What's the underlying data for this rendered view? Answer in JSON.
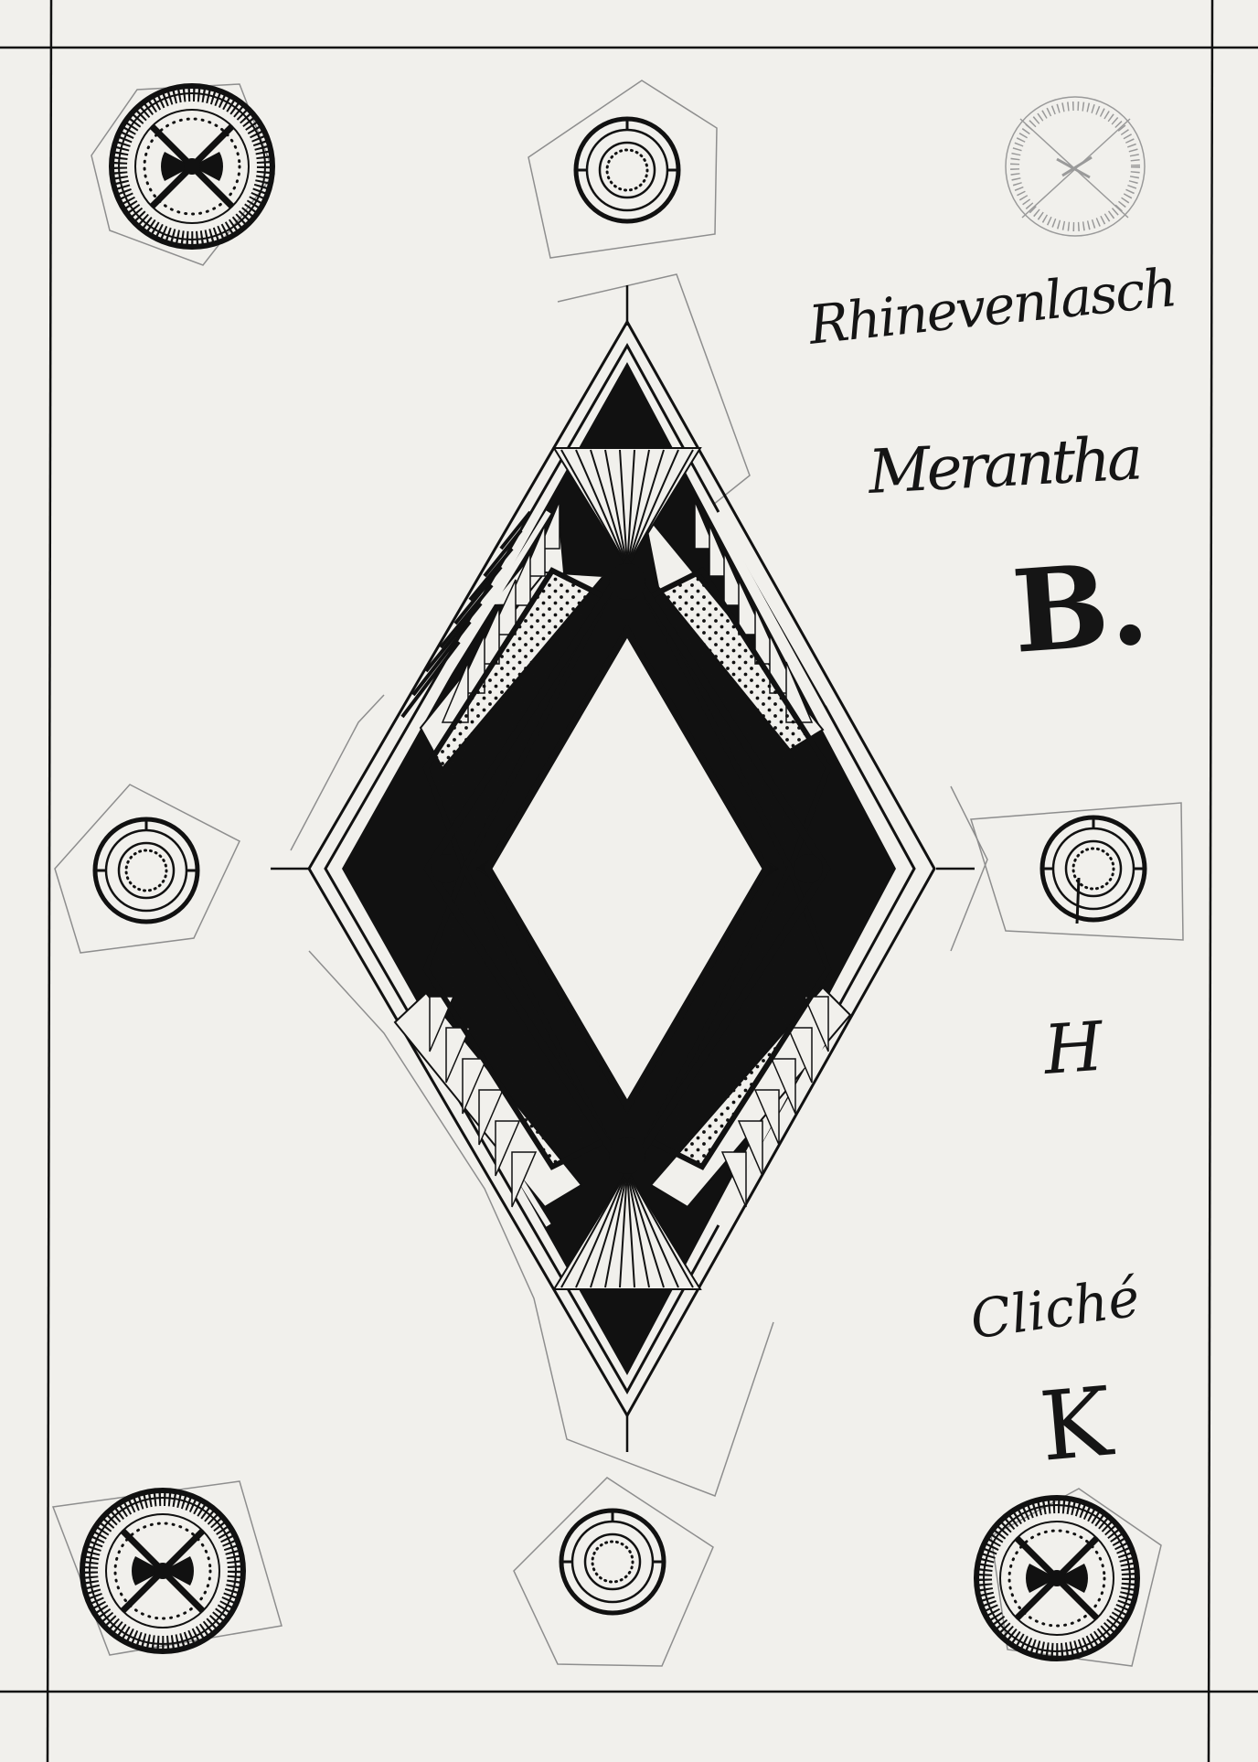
{
  "annotations": {
    "line1": "Rhinevenlasch",
    "line2": "Merantha",
    "letter_b": "B.",
    "letter_h": "H",
    "cliche": "Cliché",
    "letter_k": "K"
  },
  "colors": {
    "paper": "#f1f0ec",
    "ink": "#111111",
    "pencil": "#9a9a9a"
  },
  "icons": {
    "corner_ornament": "quartered-roundel-icon",
    "side_ornament": "concentric-ring-icon",
    "centre_ornament": "lozenge-sunburst-icon"
  }
}
